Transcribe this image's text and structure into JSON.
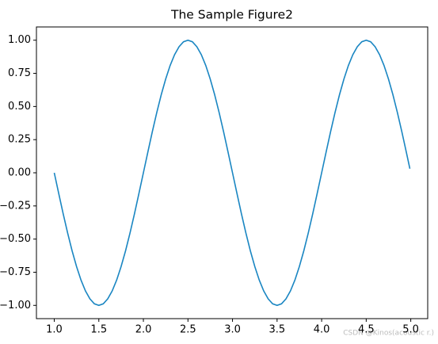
{
  "chart_data": {
    "type": "line",
    "title": "The Sample Figure2",
    "watermark": "CSDN @Kinos(acoustic r.)",
    "x": [
      1.0,
      1.05,
      1.1,
      1.15,
      1.2,
      1.25,
      1.3,
      1.35,
      1.4,
      1.45,
      1.5,
      1.55,
      1.6,
      1.65,
      1.7,
      1.75,
      1.8,
      1.85,
      1.9,
      1.95,
      2.0,
      2.05,
      2.1,
      2.15,
      2.2,
      2.25,
      2.3,
      2.35,
      2.4,
      2.45,
      2.5,
      2.55,
      2.6,
      2.65,
      2.7,
      2.75,
      2.8,
      2.85,
      2.9,
      2.95,
      3.0,
      3.05,
      3.1,
      3.15,
      3.2,
      3.25,
      3.3,
      3.35,
      3.4,
      3.45,
      3.5,
      3.55,
      3.6,
      3.65,
      3.7,
      3.75,
      3.8,
      3.85,
      3.9,
      3.95,
      4.0,
      4.05,
      4.1,
      4.15,
      4.2,
      4.25,
      4.3,
      4.35,
      4.4,
      4.45,
      4.5,
      4.55,
      4.6,
      4.65,
      4.7,
      4.75,
      4.8,
      4.85,
      4.9,
      4.95,
      4.99
    ],
    "series": [
      {
        "color": "#1a86c2",
        "values": [
          0,
          -0.156,
          -0.309,
          -0.454,
          -0.588,
          -0.707,
          -0.809,
          -0.891,
          -0.951,
          -0.988,
          -1,
          -0.988,
          -0.951,
          -0.891,
          -0.809,
          -0.707,
          -0.588,
          -0.454,
          -0.309,
          -0.156,
          0,
          0.156,
          0.309,
          0.454,
          0.588,
          0.707,
          0.809,
          0.891,
          0.951,
          0.988,
          1,
          0.988,
          0.951,
          0.891,
          0.809,
          0.707,
          0.588,
          0.454,
          0.309,
          0.156,
          0,
          -0.156,
          -0.309,
          -0.454,
          -0.588,
          -0.707,
          -0.809,
          -0.891,
          -0.951,
          -0.988,
          -1,
          -0.988,
          -0.951,
          -0.891,
          -0.809,
          -0.707,
          -0.588,
          -0.454,
          -0.309,
          -0.156,
          0,
          0.156,
          0.309,
          0.454,
          0.588,
          0.707,
          0.809,
          0.891,
          0.951,
          0.988,
          1,
          0.988,
          0.951,
          0.891,
          0.809,
          0.707,
          0.588,
          0.454,
          0.309,
          0.156,
          0.031
        ]
      }
    ],
    "xlim": [
      0.8,
      5.19
    ],
    "ylim": [
      -1.1,
      1.1
    ],
    "xticks": [
      {
        "value": 1,
        "label": "1.0"
      },
      {
        "value": 1.5,
        "label": "1.5"
      },
      {
        "value": 2,
        "label": "2.0"
      },
      {
        "value": 2.5,
        "label": "2.5"
      },
      {
        "value": 3,
        "label": "3.0"
      },
      {
        "value": 3.5,
        "label": "3.5"
      },
      {
        "value": 4,
        "label": "4.0"
      },
      {
        "value": 4.5,
        "label": "4.5"
      },
      {
        "value": 5,
        "label": "5.0"
      }
    ],
    "yticks": [
      {
        "value": -1,
        "label": "−1.00"
      },
      {
        "value": -0.75,
        "label": "−0.75"
      },
      {
        "value": -0.5,
        "label": "−0.50"
      },
      {
        "value": -0.25,
        "label": "−0.25"
      },
      {
        "value": 0,
        "label": "0.00"
      },
      {
        "value": 0.25,
        "label": "0.25"
      },
      {
        "value": 0.5,
        "label": "0.50"
      },
      {
        "value": 0.75,
        "label": "0.75"
      },
      {
        "value": 1,
        "label": "1.00"
      }
    ],
    "grid": false
  }
}
